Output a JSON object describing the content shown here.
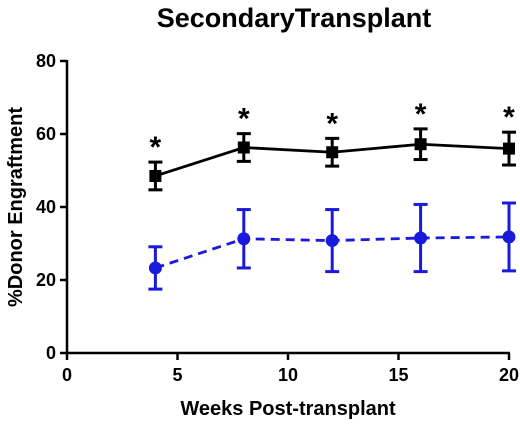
{
  "chart_data": {
    "type": "line",
    "title": "SecondaryTransplant",
    "xlabel": "Weeks Post-transplant",
    "ylabel": "%Donor Engraftment",
    "xlim": [
      0,
      20
    ],
    "ylim": [
      0,
      80
    ],
    "xticks": [
      0,
      5,
      10,
      15,
      20
    ],
    "yticks": [
      0,
      20,
      40,
      60,
      80
    ],
    "grid": false,
    "series": [
      {
        "color": "#000000",
        "line_style": "solid",
        "marker": "square",
        "x": [
          4,
          8,
          12,
          16,
          20
        ],
        "y": [
          48.5,
          56.3,
          55.0,
          57.2,
          56.0
        ],
        "error": [
          3.8,
          3.8,
          3.8,
          4.2,
          4.5
        ]
      },
      {
        "color": "#1a1adc",
        "line_style": "dashed",
        "marker": "circle",
        "x": [
          4,
          8,
          12,
          16,
          20
        ],
        "y": [
          23.3,
          31.3,
          30.8,
          31.5,
          31.8
        ],
        "error": [
          5.8,
          8.0,
          8.5,
          9.2,
          9.3
        ]
      }
    ],
    "annotations": [
      {
        "text": "*",
        "x": 4
      },
      {
        "text": "*",
        "x": 8
      },
      {
        "text": "*",
        "x": 12
      },
      {
        "text": "*",
        "x": 16
      },
      {
        "text": "*",
        "x": 20
      }
    ]
  }
}
